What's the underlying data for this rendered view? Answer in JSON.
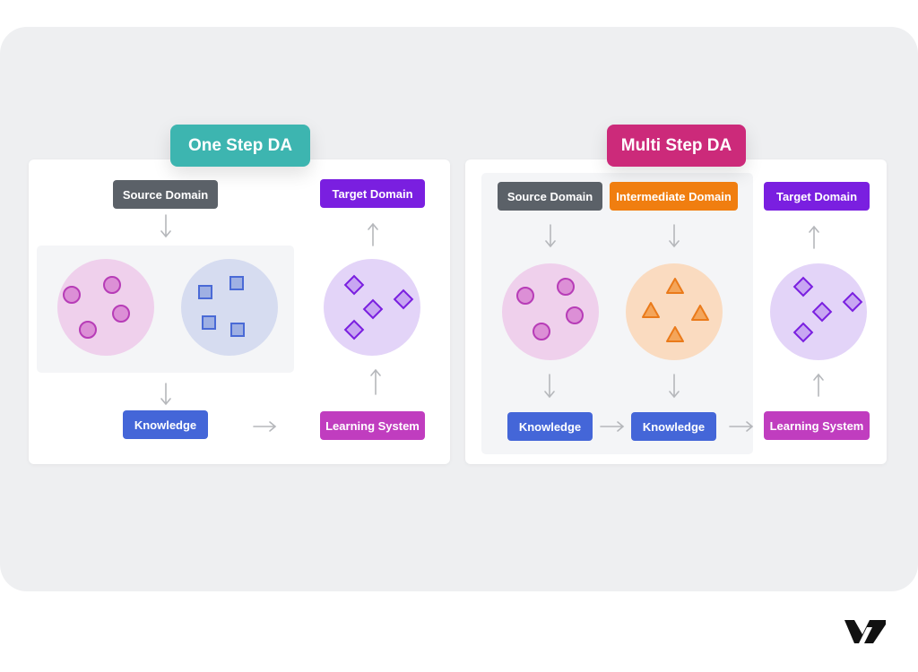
{
  "one_step": {
    "title": "One Step DA",
    "source": "Source Domain",
    "target": "Target Domain",
    "knowledge": "Knowledge",
    "learning": "Learning System"
  },
  "multi_step": {
    "title": "Multi Step DA",
    "source": "Source Domain",
    "intermediate": "Intermediate Domain",
    "target": "Target Domain",
    "knowledge_1": "Knowledge",
    "knowledge_2": "Knowledge",
    "learning": "Learning System"
  },
  "colors": {
    "one_step_title": "#3db5b0",
    "multi_step_title": "#cc2a7a",
    "source": "#5b6168",
    "intermediate": "#f07e10",
    "target": "#7a1fe0",
    "knowledge": "#4466d8",
    "learning": "#c03dbf"
  },
  "logo": "V7"
}
